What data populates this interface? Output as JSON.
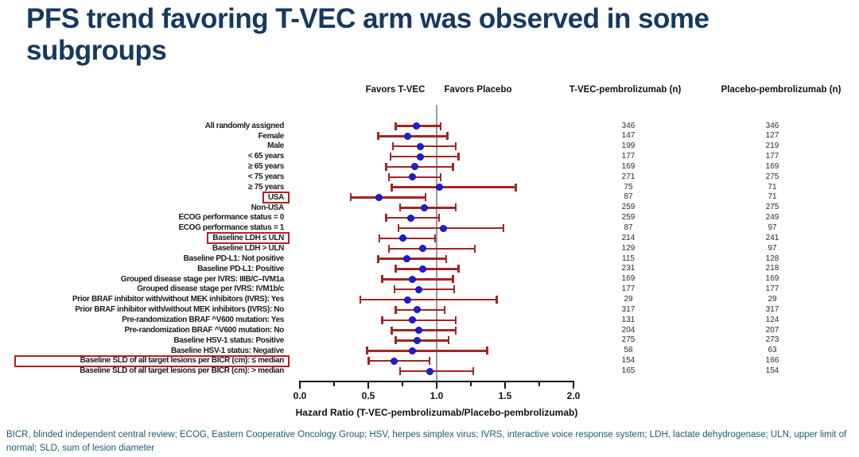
{
  "title": "PFS trend favoring T-VEC arm was observed in some subgroups",
  "footer": "BICR, blinded independent central review; ECOG, Eastern Cooperative Oncology Group; HSV, herpes simplex virus; IVRS, interactive voice response system; LDH, lactate dehydrogenase; ULN, upper limit of normal; SLD, sum of lesion diameter",
  "colors": {
    "title_navy": "#16395f",
    "footer_blue": "#1d5875",
    "ci_red": "#a32424",
    "dot_blue": "#1e1ed2",
    "highlight_red": "#b22222",
    "reference_gray": "#9a9a9a",
    "axis_black": "#111111"
  },
  "chart_data": {
    "type": "forest",
    "favors_left_label": "Favors T-VEC",
    "favors_right_label": "Favors Placebo",
    "col_tvec_header": "T-VEC-pembrolizumab (n)",
    "col_placebo_header": "Placebo-pembrolizumab (n)",
    "xlabel": "Hazard Ratio (T-VEC-pembrolizumab/Placebo-pembrolizumab)",
    "xlim": [
      0.0,
      2.0
    ],
    "x_ticks": [
      "0.0",
      "0.5",
      "1.0",
      "1.5",
      "2.0"
    ],
    "x_minor_ticks": [
      0.25,
      0.75,
      1.25,
      1.75
    ],
    "reference_line": 1.0,
    "rows": [
      {
        "label": "All randomly assigned",
        "hr": 0.85,
        "ci_low": 0.7,
        "ci_high": 1.03,
        "n_tvec": "346",
        "n_placebo": "346",
        "highlight": null
      },
      {
        "label": "Female",
        "hr": 0.79,
        "ci_low": 0.57,
        "ci_high": 1.08,
        "n_tvec": "147",
        "n_placebo": "127",
        "highlight": null
      },
      {
        "label": "Male",
        "hr": 0.88,
        "ci_low": 0.68,
        "ci_high": 1.14,
        "n_tvec": "199",
        "n_placebo": "219",
        "highlight": null
      },
      {
        "label": "< 65 years",
        "hr": 0.88,
        "ci_low": 0.66,
        "ci_high": 1.16,
        "n_tvec": "177",
        "n_placebo": "177",
        "highlight": null
      },
      {
        "label": "≥ 65 years",
        "hr": 0.84,
        "ci_low": 0.63,
        "ci_high": 1.12,
        "n_tvec": "169",
        "n_placebo": "169",
        "highlight": null
      },
      {
        "label": "< 75 years",
        "hr": 0.82,
        "ci_low": 0.65,
        "ci_high": 1.03,
        "n_tvec": "271",
        "n_placebo": "275",
        "highlight": null
      },
      {
        "label": "≥ 75 years",
        "hr": 1.02,
        "ci_low": 0.67,
        "ci_high": 1.58,
        "n_tvec": "75",
        "n_placebo": "71",
        "highlight": null
      },
      {
        "label": "USA",
        "hr": 0.58,
        "ci_low": 0.37,
        "ci_high": 0.92,
        "n_tvec": "87",
        "n_placebo": "71",
        "highlight": "label"
      },
      {
        "label": "Non-USA",
        "hr": 0.91,
        "ci_low": 0.73,
        "ci_high": 1.14,
        "n_tvec": "259",
        "n_placebo": "275",
        "highlight": null
      },
      {
        "label": "ECOG performance status = 0",
        "hr": 0.81,
        "ci_low": 0.63,
        "ci_high": 1.02,
        "n_tvec": "259",
        "n_placebo": "249",
        "highlight": null
      },
      {
        "label": "ECOG performance status = 1",
        "hr": 1.05,
        "ci_low": 0.72,
        "ci_high": 1.49,
        "n_tvec": "87",
        "n_placebo": "97",
        "highlight": null
      },
      {
        "label": "Baseline LDH ≤ ULN",
        "hr": 0.75,
        "ci_low": 0.58,
        "ci_high": 0.99,
        "n_tvec": "214",
        "n_placebo": "241",
        "highlight": "label"
      },
      {
        "label": "Baseline LDH > ULN",
        "hr": 0.9,
        "ci_low": 0.65,
        "ci_high": 1.28,
        "n_tvec": "129",
        "n_placebo": "97",
        "highlight": null
      },
      {
        "label": "Baseline PD-L1: Not positive",
        "hr": 0.78,
        "ci_low": 0.57,
        "ci_high": 1.07,
        "n_tvec": "115",
        "n_placebo": "128",
        "highlight": null
      },
      {
        "label": "Baseline PD-L1: Positive",
        "hr": 0.9,
        "ci_low": 0.7,
        "ci_high": 1.16,
        "n_tvec": "231",
        "n_placebo": "218",
        "highlight": null
      },
      {
        "label": "Grouped disease stage per IVRS: IIIB/C–IVM1a",
        "hr": 0.82,
        "ci_low": 0.6,
        "ci_high": 1.12,
        "n_tvec": "169",
        "n_placebo": "169",
        "highlight": null
      },
      {
        "label": "Grouped disease stage per IVRS: IVM1b/c",
        "hr": 0.87,
        "ci_low": 0.69,
        "ci_high": 1.13,
        "n_tvec": "177",
        "n_placebo": "177",
        "highlight": null
      },
      {
        "label": "Prior BRAF inhibitor with/without MEK inhibitors (IVRS): Yes",
        "hr": 0.79,
        "ci_low": 0.44,
        "ci_high": 1.44,
        "n_tvec": "29",
        "n_placebo": "29",
        "highlight": null
      },
      {
        "label": "Prior BRAF inhibitor with/without MEK inhibitors (IVRS): No",
        "hr": 0.86,
        "ci_low": 0.7,
        "ci_high": 1.06,
        "n_tvec": "317",
        "n_placebo": "317",
        "highlight": null
      },
      {
        "label": "Pre-randomization BRAF ^V600 mutation: Yes",
        "hr": 0.82,
        "ci_low": 0.6,
        "ci_high": 1.14,
        "n_tvec": "131",
        "n_placebo": "124",
        "highlight": null
      },
      {
        "label": "Pre-randomization BRAF ^V600 mutation: No",
        "hr": 0.87,
        "ci_low": 0.67,
        "ci_high": 1.14,
        "n_tvec": "204",
        "n_placebo": "207",
        "highlight": null
      },
      {
        "label": "Baseline HSV-1 status: Positive",
        "hr": 0.86,
        "ci_low": 0.7,
        "ci_high": 1.09,
        "n_tvec": "275",
        "n_placebo": "273",
        "highlight": null
      },
      {
        "label": "Baseline HSV-1 status: Negative",
        "hr": 0.82,
        "ci_low": 0.49,
        "ci_high": 1.37,
        "n_tvec": "58",
        "n_placebo": "63",
        "highlight": null
      },
      {
        "label": "Baseline SLD of all target lesions per BICR (cm): ≤ median",
        "hr": 0.69,
        "ci_low": 0.5,
        "ci_high": 0.95,
        "n_tvec": "154",
        "n_placebo": "166",
        "highlight": "wide"
      },
      {
        "label": "Baseline SLD of all target lesions per BICR (cm): > median",
        "hr": 0.95,
        "ci_low": 0.73,
        "ci_high": 1.27,
        "n_tvec": "165",
        "n_placebo": "154",
        "highlight": null
      }
    ]
  }
}
